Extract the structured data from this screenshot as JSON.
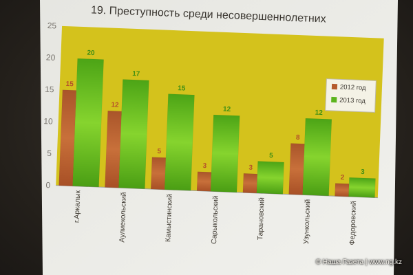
{
  "chart_data": {
    "type": "bar",
    "title": "19. Преступность среди несовершеннолетних",
    "xlabel": "",
    "ylabel": "",
    "ylim": [
      0,
      25
    ],
    "yticks": [
      0,
      5,
      10,
      15,
      20,
      25
    ],
    "grid": false,
    "legend_position": "top-right",
    "categories": [
      "г.Аркалык",
      "Аулиекольский",
      "Камыстинский",
      "Сарыкольский",
      "Тарановский",
      "Узункольский",
      "Федоровский"
    ],
    "series": [
      {
        "name": "2012 год",
        "values": [
          15,
          12,
          5,
          3,
          3,
          8,
          2
        ],
        "color": "#b55a2c"
      },
      {
        "name": "2013 год",
        "values": [
          20,
          17,
          15,
          12,
          5,
          12,
          3
        ],
        "color": "#5cb41e"
      }
    ],
    "plot_background": "#d4c21c"
  },
  "credit": "© Наша Газета | www.ng.kz"
}
